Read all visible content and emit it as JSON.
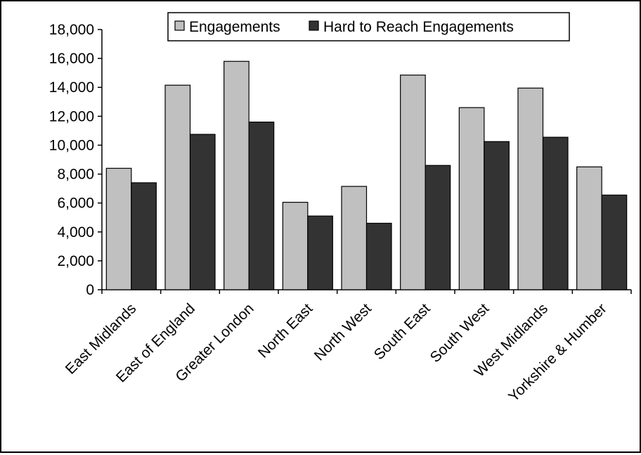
{
  "chart_data": {
    "type": "bar",
    "title": "",
    "xlabel": "",
    "ylabel": "",
    "ylim": [
      0,
      18000
    ],
    "yticks": [
      0,
      2000,
      4000,
      6000,
      8000,
      10000,
      12000,
      14000,
      16000,
      18000
    ],
    "ytick_labels": [
      "0",
      "2,000",
      "4,000",
      "6,000",
      "8,000",
      "10,000",
      "12,000",
      "14,000",
      "16,000",
      "18,000"
    ],
    "grid": false,
    "legend_position": "top",
    "categories": [
      "East Midlands",
      "East of England",
      "Greater London",
      "North East",
      "North West",
      "South East",
      "South West",
      "West Midlands",
      "Yorkshire & Humber"
    ],
    "series": [
      {
        "name": "Engagements",
        "color": "#c0c0c0",
        "values": [
          8400,
          14150,
          15800,
          6050,
          7150,
          14850,
          12600,
          13950,
          8500
        ]
      },
      {
        "name": "Hard to Reach Engagements",
        "color": "#333333",
        "values": [
          7400,
          10750,
          11600,
          5100,
          4600,
          8600,
          10250,
          10550,
          6550
        ]
      }
    ]
  }
}
